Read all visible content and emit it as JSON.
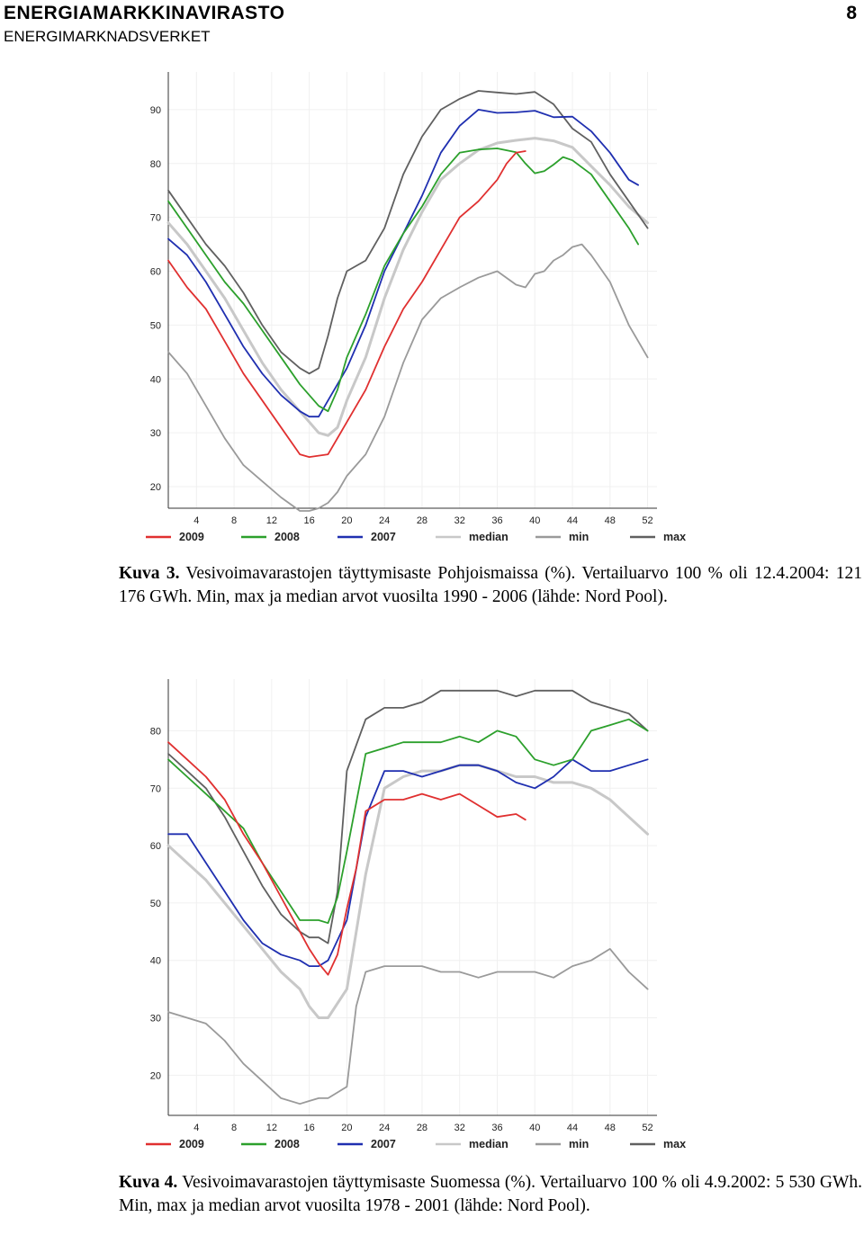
{
  "header": {
    "title": "ENERGIAMARKKINAVIRASTO",
    "subtitle": "ENERGIMARKNADSVERKET",
    "page_number": "8"
  },
  "captions": [
    {
      "label": "Kuva 3.",
      "text": "Vesivoimavarastojen täyttymisaste Pohjoismaissa (%). Vertailuarvo 100 % oli 12.4.2004: 121 176 GWh. Min, max ja median arvot vuosilta 1990 - 2006 (lähde: Nord Pool)."
    },
    {
      "label": "Kuva 4.",
      "text": "Vesivoimavarastojen täyttymisaste Suomessa (%). Vertailuarvo 100 % oli 4.9.2002: 5 530 GWh. Min, max ja median arvot vuosilta 1978 - 2001 (lähde: Nord Pool)."
    }
  ],
  "colors": {
    "2009": "#e03030",
    "2008": "#2ca02c",
    "2007": "#1f2fb0",
    "median": "#c8c8c8",
    "min": "#9a9a9a",
    "max": "#606060"
  },
  "chart_data": [
    {
      "type": "line",
      "x_ticks": [
        "4",
        "8",
        "12",
        "16",
        "20",
        "24",
        "28",
        "32",
        "36",
        "40",
        "44",
        "48",
        "52"
      ],
      "y_ticks": [
        "20",
        "30",
        "40",
        "50",
        "60",
        "70",
        "80",
        "90"
      ],
      "xlim": [
        1,
        53
      ],
      "ylim": [
        16,
        97
      ],
      "grid": true,
      "legend_position": "bottom",
      "series": [
        {
          "name": "2009",
          "x": [
            1,
            3,
            5,
            7,
            9,
            11,
            13,
            15,
            16,
            18,
            20,
            22,
            24,
            26,
            28,
            30,
            32,
            34,
            36,
            37,
            38,
            39
          ],
          "y": [
            62,
            57,
            53,
            47,
            41,
            36,
            31,
            26,
            25.5,
            26,
            32,
            38,
            46,
            53,
            58,
            64,
            70,
            73,
            77,
            80,
            82,
            82.3
          ]
        },
        {
          "name": "2008",
          "x": [
            1,
            3,
            5,
            7,
            9,
            11,
            13,
            15,
            17,
            18,
            19,
            20,
            22,
            24,
            26,
            28,
            30,
            32,
            34,
            36,
            38,
            39,
            40,
            41,
            42,
            43,
            44,
            46,
            48,
            50,
            51
          ],
          "y": [
            73,
            68,
            63,
            58,
            54,
            49,
            44,
            39,
            35,
            34,
            38,
            44,
            52,
            61,
            67,
            72,
            78,
            82,
            82.6,
            82.8,
            82.1,
            80,
            78.2,
            78.6,
            79.8,
            81.2,
            80.6,
            78,
            73,
            68,
            65
          ]
        },
        {
          "name": "2007",
          "x": [
            1,
            3,
            5,
            7,
            9,
            11,
            13,
            15,
            16,
            17,
            18,
            20,
            22,
            24,
            26,
            28,
            30,
            32,
            34,
            36,
            38,
            40,
            42,
            44,
            46,
            48,
            50,
            51
          ],
          "y": [
            66,
            63,
            58,
            52,
            46,
            41,
            37,
            34,
            33,
            33,
            36,
            42,
            50,
            60,
            67,
            74,
            82,
            87,
            90,
            89.4,
            89.5,
            89.8,
            88.6,
            88.7,
            86,
            82,
            77,
            76
          ]
        },
        {
          "name": "median",
          "x": [
            1,
            3,
            5,
            7,
            9,
            11,
            13,
            15,
            17,
            18,
            19,
            20,
            22,
            24,
            26,
            28,
            30,
            32,
            34,
            36,
            38,
            40,
            42,
            44,
            46,
            48,
            50,
            52
          ],
          "y": [
            69,
            65,
            60,
            55,
            49,
            43,
            38,
            34,
            30,
            29.5,
            31,
            36,
            44,
            55,
            64,
            71,
            77,
            80,
            82.5,
            83.8,
            84.3,
            84.7,
            84.2,
            83,
            79.5,
            76,
            72,
            69
          ]
        },
        {
          "name": "min",
          "x": [
            1,
            3,
            5,
            7,
            9,
            11,
            13,
            15,
            16,
            17,
            18,
            19,
            20,
            22,
            24,
            26,
            28,
            30,
            32,
            34,
            36,
            38,
            39,
            40,
            41,
            42,
            43,
            44,
            45,
            46,
            48,
            50,
            52
          ],
          "y": [
            45,
            41,
            35,
            29,
            24,
            21,
            18,
            15.5,
            15.5,
            16,
            17,
            19,
            22,
            26,
            33,
            43,
            51,
            55,
            57,
            58.8,
            60,
            57.5,
            57,
            59.5,
            60,
            62,
            63,
            64.5,
            65,
            63,
            58,
            50,
            44
          ]
        },
        {
          "name": "max",
          "x": [
            1,
            3,
            5,
            7,
            9,
            11,
            13,
            15,
            16,
            17,
            18,
            19,
            20,
            22,
            24,
            26,
            28,
            30,
            32,
            34,
            36,
            38,
            40,
            42,
            44,
            46,
            48,
            50,
            52
          ],
          "y": [
            75,
            70,
            65,
            61,
            56,
            50,
            45,
            42,
            41,
            42,
            48,
            55,
            60,
            62,
            68,
            78,
            85,
            90,
            92,
            93.5,
            93.2,
            92.9,
            93.3,
            91,
            86.5,
            84,
            78,
            73,
            68
          ]
        }
      ]
    },
    {
      "type": "line",
      "x_ticks": [
        "4",
        "8",
        "12",
        "16",
        "20",
        "24",
        "28",
        "32",
        "36",
        "40",
        "44",
        "48",
        "52"
      ],
      "y_ticks": [
        "20",
        "30",
        "40",
        "50",
        "60",
        "70",
        "80"
      ],
      "xlim": [
        1,
        53
      ],
      "ylim": [
        13,
        89
      ],
      "grid": true,
      "legend_position": "bottom",
      "series": [
        {
          "name": "2009",
          "x": [
            1,
            3,
            5,
            7,
            9,
            11,
            13,
            15,
            16,
            17,
            18,
            19,
            20,
            21,
            22,
            24,
            26,
            28,
            30,
            32,
            34,
            36,
            38,
            39
          ],
          "y": [
            78,
            75,
            72,
            68,
            62,
            57,
            51,
            45,
            42,
            39.5,
            37.5,
            41,
            49,
            56,
            66,
            68,
            68,
            69,
            68,
            69,
            67,
            65,
            65.5,
            64.5
          ]
        },
        {
          "name": "2008",
          "x": [
            1,
            3,
            5,
            7,
            9,
            11,
            13,
            15,
            17,
            18,
            19,
            20,
            22,
            24,
            26,
            28,
            30,
            32,
            34,
            36,
            38,
            40,
            42,
            44,
            46,
            48,
            50,
            52
          ],
          "y": [
            75,
            72,
            69,
            66,
            63,
            57,
            52,
            47,
            47,
            46.5,
            51,
            59,
            76,
            77,
            78,
            78,
            78,
            79,
            78,
            80,
            79,
            75,
            74,
            75,
            80,
            81,
            82,
            80
          ]
        },
        {
          "name": "2007",
          "x": [
            1,
            3,
            5,
            7,
            9,
            11,
            13,
            15,
            16,
            17,
            18,
            20,
            22,
            24,
            26,
            28,
            30,
            32,
            34,
            36,
            38,
            40,
            42,
            44,
            46,
            48,
            50,
            52
          ],
          "y": [
            62,
            62,
            57,
            52,
            47,
            43,
            41,
            40,
            39,
            39,
            40,
            47,
            65,
            73,
            73,
            72,
            73,
            74,
            74,
            73,
            71,
            70,
            72,
            75,
            73,
            73,
            74,
            75
          ]
        },
        {
          "name": "median",
          "x": [
            1,
            3,
            5,
            7,
            9,
            11,
            13,
            15,
            16,
            17,
            18,
            20,
            22,
            24,
            26,
            28,
            30,
            32,
            34,
            36,
            38,
            40,
            42,
            44,
            46,
            48,
            50,
            52
          ],
          "y": [
            60,
            57,
            54,
            50,
            46,
            42,
            38,
            35,
            32,
            30,
            30,
            35,
            55,
            70,
            72,
            73,
            73,
            74,
            74,
            73,
            72,
            72,
            71,
            71,
            70,
            68,
            65,
            62
          ]
        },
        {
          "name": "min",
          "x": [
            1,
            3,
            5,
            7,
            9,
            11,
            13,
            15,
            16,
            17,
            18,
            19,
            20,
            21,
            22,
            24,
            26,
            28,
            30,
            32,
            34,
            36,
            38,
            40,
            42,
            44,
            46,
            48,
            50,
            52
          ],
          "y": [
            31,
            30,
            29,
            26,
            22,
            19,
            16,
            15,
            15.5,
            16,
            16,
            17,
            18,
            32,
            38,
            39,
            39,
            39,
            38,
            38,
            37,
            38,
            38,
            38,
            37,
            39,
            40,
            42,
            38,
            35
          ]
        },
        {
          "name": "max",
          "x": [
            1,
            3,
            5,
            7,
            9,
            11,
            13,
            15,
            16,
            17,
            18,
            19,
            20,
            22,
            24,
            26,
            28,
            30,
            32,
            34,
            36,
            38,
            40,
            42,
            44,
            46,
            48,
            50,
            52
          ],
          "y": [
            76,
            73,
            70,
            65,
            59,
            53,
            48,
            45,
            44,
            44,
            43,
            52,
            73,
            82,
            84,
            84,
            85,
            87,
            87,
            87,
            87,
            86,
            87,
            87,
            87,
            85,
            84,
            83,
            80
          ]
        }
      ]
    }
  ]
}
